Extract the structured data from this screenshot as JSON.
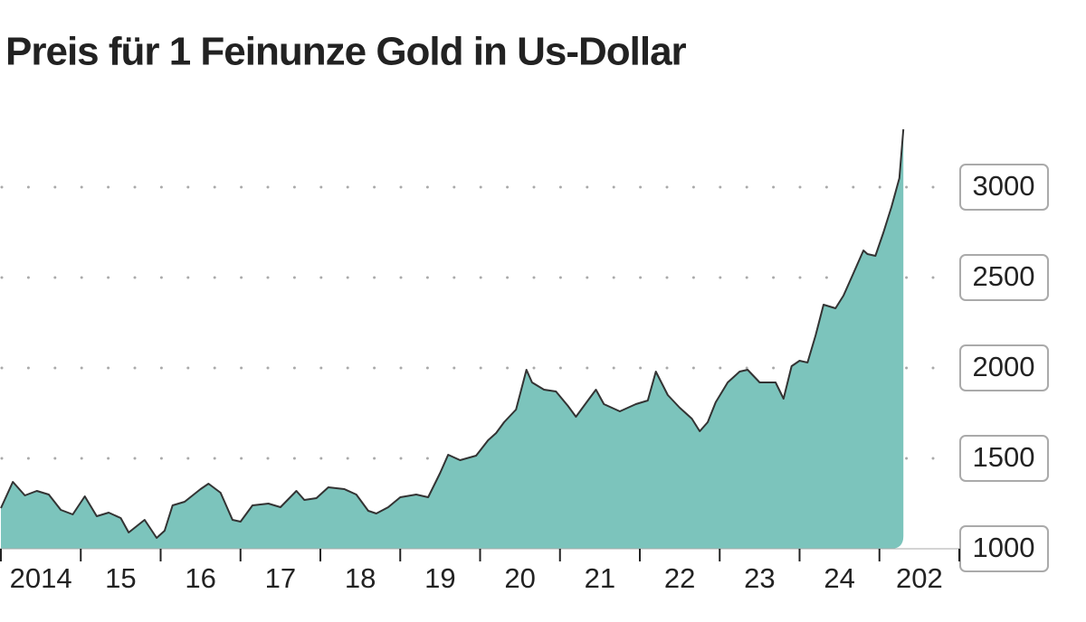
{
  "chart_data": {
    "type": "area",
    "title": "Preis für 1 Feinunze Gold in Us-Dollar",
    "x": [
      2014.0,
      2014.15,
      2014.3,
      2014.45,
      2014.6,
      2014.75,
      2014.9,
      2015.05,
      2015.2,
      2015.35,
      2015.5,
      2015.6,
      2015.8,
      2015.95,
      2016.05,
      2016.15,
      2016.3,
      2016.5,
      2016.6,
      2016.75,
      2016.9,
      2017.0,
      2017.15,
      2017.35,
      2017.5,
      2017.7,
      2017.8,
      2017.95,
      2018.1,
      2018.3,
      2018.45,
      2018.6,
      2018.7,
      2018.85,
      2019.0,
      2019.2,
      2019.35,
      2019.5,
      2019.6,
      2019.75,
      2019.95,
      2020.1,
      2020.2,
      2020.3,
      2020.45,
      2020.58,
      2020.65,
      2020.8,
      2020.95,
      2021.1,
      2021.2,
      2021.35,
      2021.45,
      2021.55,
      2021.75,
      2021.95,
      2022.1,
      2022.2,
      2022.35,
      2022.5,
      2022.65,
      2022.75,
      2022.85,
      2022.95,
      2023.1,
      2023.25,
      2023.35,
      2023.5,
      2023.7,
      2023.8,
      2023.9,
      2024.0,
      2024.1,
      2024.2,
      2024.3,
      2024.45,
      2024.55,
      2024.65,
      2024.8,
      2024.85,
      2024.95,
      2025.05,
      2025.15,
      2025.25,
      2025.3
    ],
    "values": [
      1225,
      1370,
      1295,
      1320,
      1300,
      1215,
      1190,
      1290,
      1180,
      1200,
      1170,
      1090,
      1160,
      1060,
      1100,
      1240,
      1260,
      1330,
      1360,
      1310,
      1160,
      1150,
      1240,
      1250,
      1230,
      1320,
      1270,
      1280,
      1340,
      1330,
      1300,
      1210,
      1195,
      1230,
      1285,
      1300,
      1285,
      1420,
      1520,
      1490,
      1515,
      1600,
      1640,
      1700,
      1770,
      1990,
      1920,
      1880,
      1870,
      1790,
      1730,
      1820,
      1880,
      1800,
      1760,
      1800,
      1820,
      1980,
      1850,
      1780,
      1720,
      1650,
      1700,
      1810,
      1920,
      1980,
      1990,
      1920,
      1920,
      1830,
      2010,
      2040,
      2030,
      2180,
      2350,
      2330,
      2400,
      2500,
      2650,
      2630,
      2620,
      2750,
      2890,
      3050,
      3320
    ],
    "color": "#7cc4bc",
    "line_color": "#333333",
    "xlim": [
      2014,
      2026
    ],
    "xticks": [
      {
        "value": 2014,
        "label": "2014"
      },
      {
        "value": 2015,
        "label": "15"
      },
      {
        "value": 2016,
        "label": "16"
      },
      {
        "value": 2017,
        "label": "17"
      },
      {
        "value": 2018,
        "label": "18"
      },
      {
        "value": 2019,
        "label": "19"
      },
      {
        "value": 2020,
        "label": "20"
      },
      {
        "value": 2021,
        "label": "21"
      },
      {
        "value": 2022,
        "label": "22"
      },
      {
        "value": 2023,
        "label": "23"
      },
      {
        "value": 2024,
        "label": "24"
      },
      {
        "value": 2025,
        "label": "202"
      }
    ],
    "ylim": [
      1000,
      3330
    ],
    "yticks": [
      1000,
      1500,
      2000,
      2500,
      3000
    ],
    "grid": true
  }
}
